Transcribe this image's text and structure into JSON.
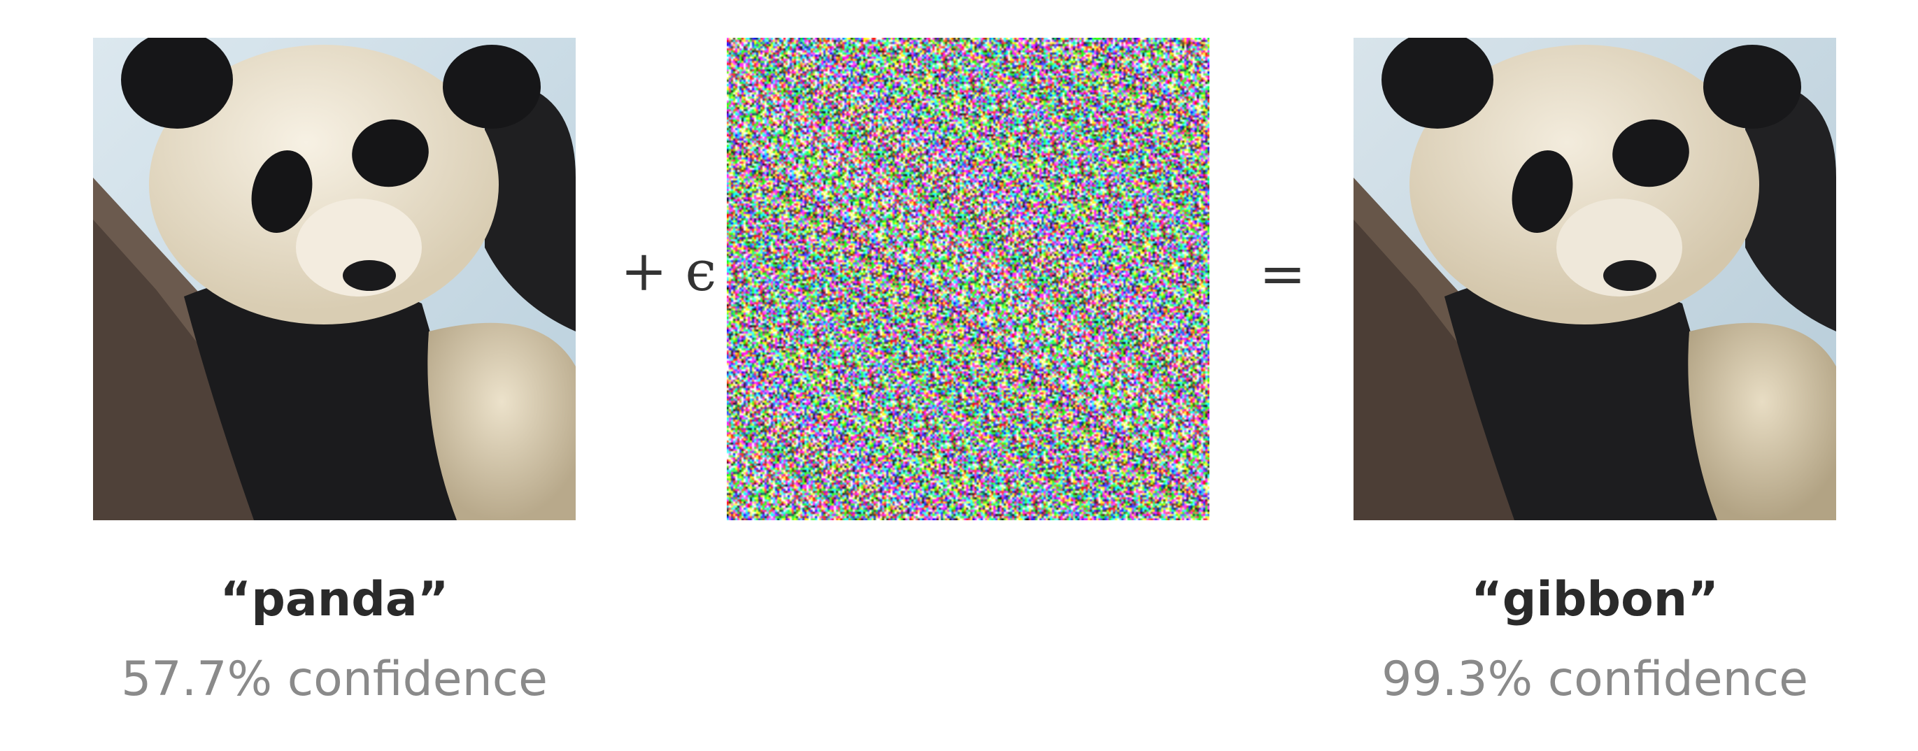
{
  "input": {
    "label": "“panda”",
    "confidence": "57.7% confidence"
  },
  "perturbation": {
    "operator": "+ ϵ"
  },
  "equals": "=",
  "output": {
    "label": "“gibbon”",
    "confidence": "99.3% confidence"
  },
  "colors": {
    "background": "#ffffff",
    "label_text": "#2a2a2a",
    "confidence_text": "#8a8a8a",
    "sky": "#c9dbe6",
    "branch": "#6b5a4e",
    "fur_white": "#efe7d6",
    "fur_black": "#1b1b1d"
  }
}
